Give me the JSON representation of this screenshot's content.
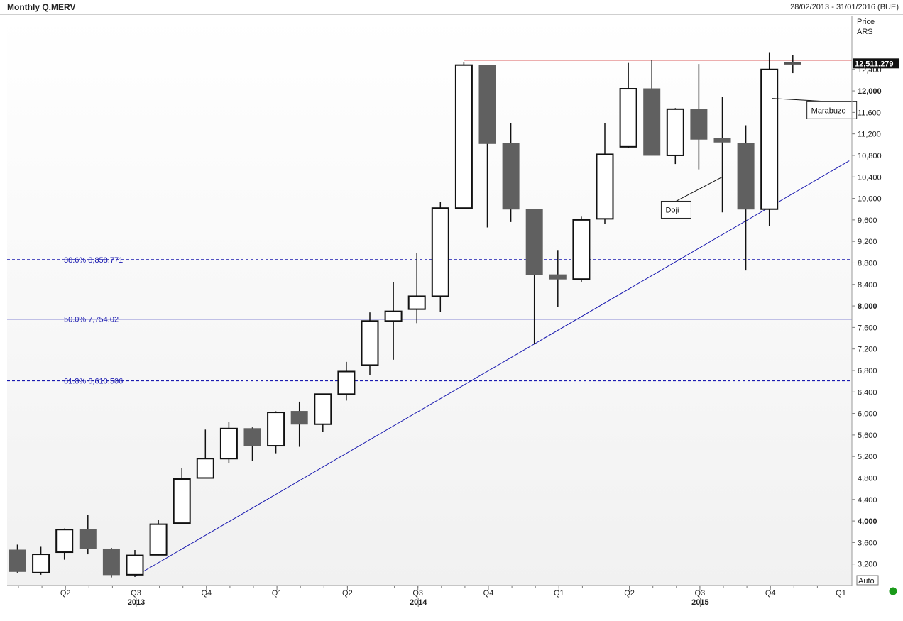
{
  "header": {
    "title": "Monthly Q.MERV",
    "date_range": "28/02/2013 - 31/01/2016 (BUE)"
  },
  "axis": {
    "price_label": "Price",
    "currency": "ARS",
    "auto_label": "Auto"
  },
  "colors": {
    "bearish": "#606060",
    "bullish": "#ffffff",
    "fib": "#1a1ab0",
    "trend": "#1a1ab0",
    "resistance": "#cc2a2a",
    "status": "#1a9a1a"
  },
  "chart_data": {
    "type": "candlestick",
    "ylim": [
      2800,
      13400
    ],
    "y_ticks": [
      {
        "value": 3200,
        "label": "3,200"
      },
      {
        "value": 3600,
        "label": "3,600"
      },
      {
        "value": 4000,
        "label": "4,000"
      },
      {
        "value": 4400,
        "label": "4,400"
      },
      {
        "value": 4800,
        "label": "4,800"
      },
      {
        "value": 5200,
        "label": "5,200"
      },
      {
        "value": 5600,
        "label": "5,600"
      },
      {
        "value": 6000,
        "label": "6,000"
      },
      {
        "value": 6400,
        "label": "6,400"
      },
      {
        "value": 6800,
        "label": "6,800"
      },
      {
        "value": 7200,
        "label": "7,200"
      },
      {
        "value": 7600,
        "label": "7,600"
      },
      {
        "value": 8000,
        "label": "8,000"
      },
      {
        "value": 8400,
        "label": "8,400"
      },
      {
        "value": 8800,
        "label": "8,800"
      },
      {
        "value": 9200,
        "label": "9,200"
      },
      {
        "value": 9600,
        "label": "9,600"
      },
      {
        "value": 10000,
        "label": "10,000"
      },
      {
        "value": 10400,
        "label": "10,400"
      },
      {
        "value": 10800,
        "label": "10,800"
      },
      {
        "value": 11200,
        "label": "11,200"
      },
      {
        "value": 11600,
        "label": "11,600"
      },
      {
        "value": 12000,
        "label": "12,000"
      },
      {
        "value": 12400,
        "label": "12,400"
      }
    ],
    "bold_ticks": [
      4000,
      8000,
      12000
    ],
    "last_price": {
      "value": 12511.279,
      "label": "12,511.279"
    },
    "x_ticks": [
      {
        "index": 2,
        "label": "Q2"
      },
      {
        "index": 5,
        "label": "Q3"
      },
      {
        "index": 8,
        "label": "Q4"
      },
      {
        "index": 11,
        "label": "Q1"
      },
      {
        "index": 14,
        "label": "Q2"
      },
      {
        "index": 17,
        "label": "Q3"
      },
      {
        "index": 20,
        "label": "Q4"
      },
      {
        "index": 23,
        "label": "Q1"
      },
      {
        "index": 26,
        "label": "Q2"
      },
      {
        "index": 29,
        "label": "Q3"
      },
      {
        "index": 32,
        "label": "Q4"
      },
      {
        "index": 35,
        "label": "Q1"
      }
    ],
    "years": [
      {
        "index": 5,
        "label": "2013"
      },
      {
        "index": 17,
        "label": "2014"
      },
      {
        "index": 29,
        "label": "2015"
      }
    ],
    "candles": [
      {
        "o": 3460,
        "h": 3560,
        "l": 3040,
        "c": 3060
      },
      {
        "o": 3040,
        "h": 3520,
        "l": 3000,
        "c": 3380
      },
      {
        "o": 3420,
        "h": 3860,
        "l": 3280,
        "c": 3840
      },
      {
        "o": 3840,
        "h": 4120,
        "l": 3380,
        "c": 3480
      },
      {
        "o": 3480,
        "h": 3500,
        "l": 2950,
        "c": 3000
      },
      {
        "o": 3000,
        "h": 3460,
        "l": 2960,
        "c": 3360
      },
      {
        "o": 3370,
        "h": 4020,
        "l": 3360,
        "c": 3940
      },
      {
        "o": 3960,
        "h": 4980,
        "l": 3960,
        "c": 4780
      },
      {
        "o": 4800,
        "h": 5700,
        "l": 4800,
        "c": 5160
      },
      {
        "o": 5160,
        "h": 5840,
        "l": 5080,
        "c": 5720
      },
      {
        "o": 5720,
        "h": 5740,
        "l": 5120,
        "c": 5400
      },
      {
        "o": 5400,
        "h": 6040,
        "l": 5260,
        "c": 6020
      },
      {
        "o": 6040,
        "h": 6220,
        "l": 5380,
        "c": 5800
      },
      {
        "o": 5800,
        "h": 6360,
        "l": 5660,
        "c": 6360
      },
      {
        "o": 6360,
        "h": 6960,
        "l": 6240,
        "c": 6780
      },
      {
        "o": 6900,
        "h": 7880,
        "l": 6720,
        "c": 7720
      },
      {
        "o": 7720,
        "h": 8440,
        "l": 7000,
        "c": 7900
      },
      {
        "o": 7940,
        "h": 8980,
        "l": 7680,
        "c": 8180
      },
      {
        "o": 8180,
        "h": 9940,
        "l": 7890,
        "c": 9820
      },
      {
        "o": 9820,
        "h": 12540,
        "l": 9820,
        "c": 12480
      },
      {
        "o": 12480,
        "h": 12480,
        "l": 9460,
        "c": 11020
      },
      {
        "o": 11020,
        "h": 11400,
        "l": 9560,
        "c": 9800
      },
      {
        "o": 9800,
        "h": 9800,
        "l": 7300,
        "c": 8580
      },
      {
        "o": 8580,
        "h": 9040,
        "l": 7980,
        "c": 8500
      },
      {
        "o": 8500,
        "h": 9660,
        "l": 8440,
        "c": 9600
      },
      {
        "o": 9620,
        "h": 11400,
        "l": 9520,
        "c": 10820
      },
      {
        "o": 10960,
        "h": 12520,
        "l": 10940,
        "c": 12040
      },
      {
        "o": 12040,
        "h": 12570,
        "l": 10800,
        "c": 10800
      },
      {
        "o": 10800,
        "h": 11680,
        "l": 10640,
        "c": 11660
      },
      {
        "o": 11660,
        "h": 12500,
        "l": 10540,
        "c": 11100
      },
      {
        "o": 11100,
        "h": 11890,
        "l": 9740,
        "c": 11060
      },
      {
        "o": 11020,
        "h": 11360,
        "l": 8660,
        "c": 9800
      },
      {
        "o": 9800,
        "h": 12720,
        "l": 9480,
        "c": 12400
      },
      {
        "o": 12511,
        "h": 12670,
        "l": 12330,
        "c": 12511
      }
    ],
    "fib_levels": [
      {
        "label": "38.6% 8,858.771",
        "value": 8858.771,
        "style": "dashed"
      },
      {
        "label": "50.0% 7,754.02",
        "value": 7754.02,
        "style": "solid"
      },
      {
        "label": "61.8% 6,610.506",
        "value": 6610.506,
        "style": "dashed"
      }
    ],
    "trendline": {
      "from": {
        "index": 5,
        "value": 2970
      },
      "to": {
        "index": 35.4,
        "value": 10700
      }
    },
    "resistance": {
      "from_index": 19,
      "value": 12570
    },
    "annotations": [
      {
        "label": "Doji",
        "target": {
          "index": 30,
          "value": 10400
        },
        "box": {
          "index": 27.4,
          "value": 9790
        }
      },
      {
        "label": "Marabuzo",
        "target": {
          "index": 32.1,
          "value": 11860
        },
        "box": {
          "index": 33.6,
          "value": 11640
        }
      }
    ]
  }
}
